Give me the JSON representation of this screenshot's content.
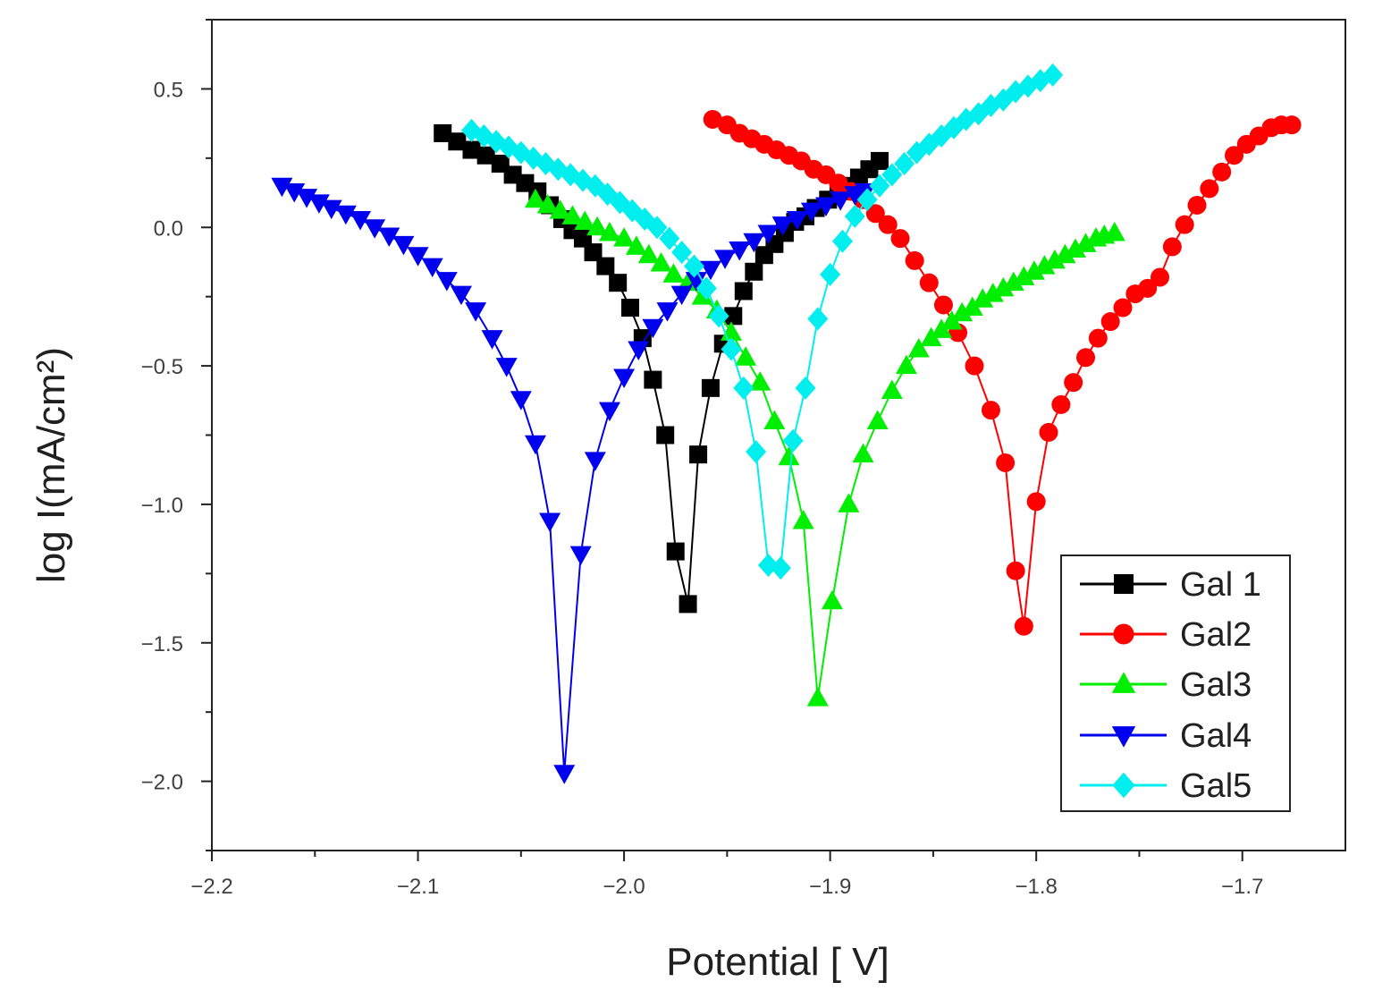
{
  "chart_data": {
    "type": "line",
    "title": "",
    "xlabel": "Potential [ V]",
    "ylabel": "log I(mA/cm²)",
    "xlim": [
      -2.2,
      -1.65
    ],
    "ylim": [
      -2.25,
      0.75
    ],
    "xticks": [
      -2.2,
      -2.1,
      -2.0,
      -1.9,
      -1.8,
      -1.7
    ],
    "xtick_labels": [
      "−2.2",
      "−2.1",
      "−2.0",
      "−1.9",
      "−1.8",
      "−1.7"
    ],
    "yticks": [
      0.5,
      0.0,
      -0.5,
      -1.0,
      -1.5,
      -2.0
    ],
    "ytick_labels": [
      "0.5",
      "0.0",
      "−0.5",
      "−1.0",
      "−1.5",
      "−2.0"
    ],
    "legend_position": "bottom-right",
    "series": [
      {
        "name": "Gal 1",
        "color": "#000000",
        "marker": "square",
        "x": [
          -2.088,
          -2.081,
          -2.074,
          -2.067,
          -2.06,
          -2.054,
          -2.048,
          -2.042,
          -2.036,
          -2.03,
          -2.025,
          -2.02,
          -2.015,
          -2.009,
          -2.003,
          -1.997,
          -1.991,
          -1.986,
          -1.98,
          -1.975,
          -1.969,
          -1.964,
          -1.958,
          -1.952,
          -1.947,
          -1.942,
          -1.937,
          -1.932,
          -1.927,
          -1.922,
          -1.917,
          -1.912,
          -1.907,
          -1.901,
          -1.896,
          -1.891,
          -1.886,
          -1.881,
          -1.876
        ],
        "y": [
          0.34,
          0.31,
          0.28,
          0.26,
          0.23,
          0.19,
          0.16,
          0.13,
          0.08,
          0.03,
          -0.01,
          -0.04,
          -0.09,
          -0.14,
          -0.2,
          -0.29,
          -0.4,
          -0.55,
          -0.75,
          -1.17,
          -1.36,
          -0.82,
          -0.58,
          -0.42,
          -0.32,
          -0.23,
          -0.16,
          -0.1,
          -0.06,
          -0.02,
          0.02,
          0.04,
          0.07,
          0.1,
          0.13,
          0.15,
          0.18,
          0.21,
          0.24
        ]
      },
      {
        "name": "Gal2",
        "color": "#ff0000",
        "marker": "circle",
        "x": [
          -1.957,
          -1.95,
          -1.944,
          -1.938,
          -1.932,
          -1.926,
          -1.92,
          -1.914,
          -1.908,
          -1.902,
          -1.896,
          -1.89,
          -1.884,
          -1.878,
          -1.872,
          -1.866,
          -1.859,
          -1.852,
          -1.845,
          -1.838,
          -1.83,
          -1.822,
          -1.815,
          -1.81,
          -1.806,
          -1.8,
          -1.794,
          -1.788,
          -1.782,
          -1.776,
          -1.77,
          -1.764,
          -1.758,
          -1.752,
          -1.746,
          -1.74,
          -1.734,
          -1.728,
          -1.722,
          -1.716,
          -1.71,
          -1.704,
          -1.698,
          -1.692,
          -1.686,
          -1.681,
          -1.676
        ],
        "y": [
          0.39,
          0.37,
          0.34,
          0.32,
          0.3,
          0.28,
          0.26,
          0.24,
          0.21,
          0.19,
          0.16,
          0.13,
          0.1,
          0.05,
          0.01,
          -0.04,
          -0.12,
          -0.2,
          -0.28,
          -0.38,
          -0.5,
          -0.66,
          -0.85,
          -1.24,
          -1.44,
          -0.99,
          -0.74,
          -0.64,
          -0.56,
          -0.47,
          -0.4,
          -0.34,
          -0.29,
          -0.24,
          -0.22,
          -0.18,
          -0.07,
          0.01,
          0.08,
          0.14,
          0.2,
          0.26,
          0.3,
          0.33,
          0.36,
          0.37,
          0.37
        ]
      },
      {
        "name": "Gal3",
        "color": "#00ee00",
        "marker": "triangle-up",
        "x": [
          -2.043,
          -2.037,
          -2.031,
          -2.025,
          -2.019,
          -2.013,
          -2.007,
          -2.0,
          -1.994,
          -1.988,
          -1.982,
          -1.976,
          -1.969,
          -1.962,
          -1.955,
          -1.948,
          -1.941,
          -1.934,
          -1.927,
          -1.92,
          -1.913,
          -1.906,
          -1.899,
          -1.891,
          -1.884,
          -1.877,
          -1.87,
          -1.863,
          -1.857,
          -1.851,
          -1.846,
          -1.841,
          -1.836,
          -1.831,
          -1.826,
          -1.821,
          -1.816,
          -1.811,
          -1.806,
          -1.801,
          -1.796,
          -1.791,
          -1.786,
          -1.781,
          -1.776,
          -1.771,
          -1.767,
          -1.762
        ],
        "y": [
          0.1,
          0.08,
          0.06,
          0.04,
          0.02,
          0.0,
          -0.02,
          -0.04,
          -0.07,
          -0.1,
          -0.13,
          -0.17,
          -0.2,
          -0.25,
          -0.3,
          -0.38,
          -0.47,
          -0.56,
          -0.7,
          -0.83,
          -1.06,
          -1.7,
          -1.35,
          -1.0,
          -0.82,
          -0.7,
          -0.59,
          -0.5,
          -0.44,
          -0.4,
          -0.37,
          -0.34,
          -0.31,
          -0.29,
          -0.26,
          -0.24,
          -0.22,
          -0.2,
          -0.18,
          -0.16,
          -0.14,
          -0.12,
          -0.1,
          -0.08,
          -0.06,
          -0.04,
          -0.03,
          -0.02
        ]
      },
      {
        "name": "Gal4",
        "color": "#0000ee",
        "marker": "triangle-down",
        "x": [
          -2.166,
          -2.16,
          -2.154,
          -2.148,
          -2.142,
          -2.135,
          -2.128,
          -2.121,
          -2.114,
          -2.107,
          -2.1,
          -2.093,
          -2.086,
          -2.079,
          -2.072,
          -2.064,
          -2.057,
          -2.05,
          -2.043,
          -2.036,
          -2.029,
          -2.021,
          -2.014,
          -2.007,
          -2.0,
          -1.993,
          -1.986,
          -1.979,
          -1.972,
          -1.965,
          -1.958,
          -1.951,
          -1.944,
          -1.937,
          -1.93,
          -1.923,
          -1.916,
          -1.909,
          -1.902,
          -1.895,
          -1.888,
          -1.883
        ],
        "y": [
          0.15,
          0.13,
          0.11,
          0.09,
          0.07,
          0.05,
          0.03,
          0.0,
          -0.03,
          -0.06,
          -0.1,
          -0.14,
          -0.19,
          -0.24,
          -0.3,
          -0.4,
          -0.5,
          -0.62,
          -0.78,
          -1.06,
          -1.97,
          -1.18,
          -0.84,
          -0.66,
          -0.54,
          -0.44,
          -0.36,
          -0.3,
          -0.24,
          -0.19,
          -0.15,
          -0.11,
          -0.08,
          -0.05,
          -0.02,
          0.01,
          0.03,
          0.06,
          0.08,
          0.1,
          0.12,
          0.13
        ]
      },
      {
        "name": "Gal5",
        "color": "#00eeee",
        "marker": "diamond",
        "x": [
          -2.074,
          -2.068,
          -2.062,
          -2.056,
          -2.05,
          -2.044,
          -2.038,
          -2.032,
          -2.026,
          -2.02,
          -2.014,
          -2.008,
          -2.002,
          -1.996,
          -1.99,
          -1.984,
          -1.978,
          -1.972,
          -1.966,
          -1.96,
          -1.954,
          -1.948,
          -1.942,
          -1.936,
          -1.93,
          -1.924,
          -1.918,
          -1.912,
          -1.906,
          -1.9,
          -1.894,
          -1.888,
          -1.882,
          -1.876,
          -1.87,
          -1.864,
          -1.858,
          -1.852,
          -1.846,
          -1.84,
          -1.834,
          -1.828,
          -1.822,
          -1.816,
          -1.81,
          -1.804,
          -1.798,
          -1.792
        ],
        "y": [
          0.35,
          0.33,
          0.31,
          0.29,
          0.27,
          0.25,
          0.23,
          0.21,
          0.19,
          0.17,
          0.15,
          0.12,
          0.09,
          0.06,
          0.03,
          0.0,
          -0.04,
          -0.09,
          -0.14,
          -0.22,
          -0.32,
          -0.44,
          -0.58,
          -0.81,
          -1.22,
          -1.23,
          -0.77,
          -0.58,
          -0.33,
          -0.17,
          -0.05,
          0.04,
          0.1,
          0.15,
          0.19,
          0.23,
          0.27,
          0.3,
          0.33,
          0.36,
          0.39,
          0.41,
          0.44,
          0.46,
          0.49,
          0.51,
          0.53,
          0.55
        ]
      }
    ]
  }
}
